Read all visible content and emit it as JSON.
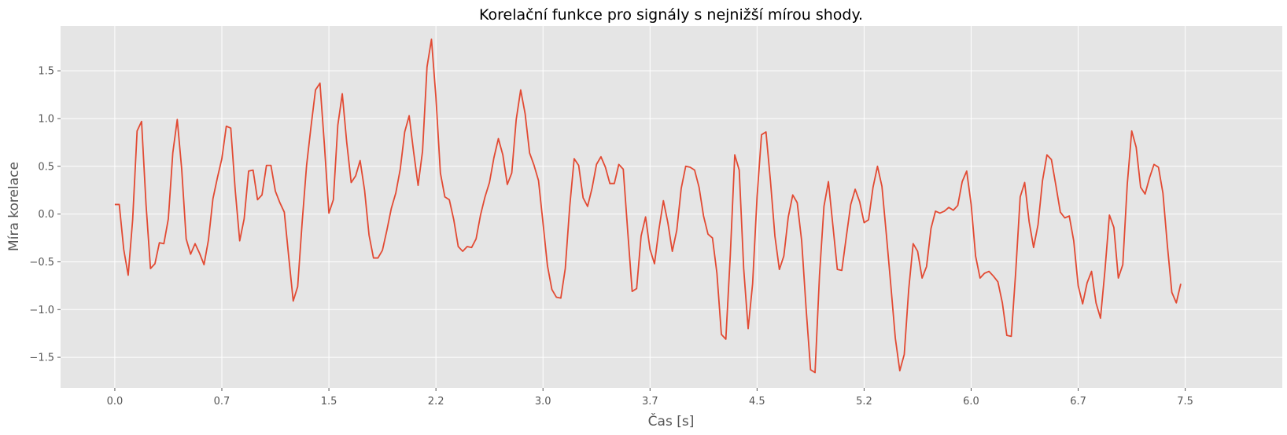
{
  "chart_data": {
    "type": "line",
    "title": "Korelační funkce pro signály s nejnižší mírou shody.",
    "xlabel": "Čas [s]",
    "ylabel": "Míra korelace",
    "xlim": [
      -0.38,
      8.18
    ],
    "ylim": [
      -1.82,
      1.97
    ],
    "xticks": [
      0.0,
      0.75,
      1.5,
      2.25,
      3.0,
      3.75,
      4.5,
      5.25,
      6.0,
      6.75,
      7.5
    ],
    "xtick_labels": [
      "0.0",
      "0.7",
      "1.5",
      "2.2",
      "3.0",
      "3.7",
      "4.5",
      "5.2",
      "6.0",
      "6.7",
      "7.5"
    ],
    "yticks": [
      -1.5,
      -1.0,
      -0.5,
      0.0,
      0.5,
      1.0,
      1.5
    ],
    "ytick_labels": [
      "−1.5",
      "−1.0",
      "−0.5",
      "0.0",
      "0.5",
      "1.0",
      "1.5"
    ],
    "grid": true,
    "colors": {
      "line": "#E24A33",
      "background": "#E5E5E5",
      "grid": "#FFFFFF"
    },
    "series": [
      {
        "x_start": 0.0,
        "x_step": 0.03125,
        "values": [
          0.1,
          0.1,
          -0.37,
          -0.64,
          -0.06,
          0.87,
          0.97,
          0.1,
          -0.57,
          -0.52,
          -0.3,
          -0.31,
          -0.05,
          0.64,
          0.99,
          0.47,
          -0.26,
          -0.42,
          -0.31,
          -0.41,
          -0.53,
          -0.27,
          0.16,
          0.38,
          0.58,
          0.92,
          0.9,
          0.25,
          -0.28,
          -0.05,
          0.45,
          0.46,
          0.15,
          0.2,
          0.51,
          0.51,
          0.24,
          0.12,
          0.02,
          -0.45,
          -0.91,
          -0.76,
          -0.09,
          0.51,
          0.92,
          1.3,
          1.37,
          0.72,
          0.01,
          0.15,
          0.93,
          1.26,
          0.75,
          0.33,
          0.4,
          0.56,
          0.25,
          -0.22,
          -0.46,
          -0.46,
          -0.38,
          -0.17,
          0.06,
          0.22,
          0.47,
          0.86,
          1.03,
          0.65,
          0.3,
          0.66,
          1.54,
          1.83,
          1.22,
          0.43,
          0.18,
          0.15,
          -0.06,
          -0.34,
          -0.39,
          -0.34,
          -0.35,
          -0.26,
          -0.01,
          0.18,
          0.33,
          0.59,
          0.79,
          0.62,
          0.31,
          0.43,
          0.99,
          1.3,
          1.05,
          0.64,
          0.51,
          0.35,
          -0.09,
          -0.54,
          -0.79,
          -0.87,
          -0.88,
          -0.57,
          0.08,
          0.58,
          0.51,
          0.17,
          0.08,
          0.27,
          0.52,
          0.6,
          0.49,
          0.32,
          0.32,
          0.52,
          0.47,
          -0.18,
          -0.81,
          -0.78,
          -0.23,
          -0.03,
          -0.37,
          -0.52,
          -0.16,
          0.14,
          -0.09,
          -0.39,
          -0.17,
          0.27,
          0.5,
          0.49,
          0.46,
          0.28,
          -0.02,
          -0.21,
          -0.25,
          -0.62,
          -1.26,
          -1.31,
          -0.43,
          0.62,
          0.46,
          -0.57,
          -1.2,
          -0.73,
          0.18,
          0.83,
          0.86,
          0.35,
          -0.23,
          -0.58,
          -0.44,
          -0.03,
          0.2,
          0.12,
          -0.28,
          -0.99,
          -1.63,
          -1.66,
          -0.64,
          0.08,
          0.34,
          -0.12,
          -0.58,
          -0.59,
          -0.24,
          0.1,
          0.26,
          0.13,
          -0.09,
          -0.06,
          0.28,
          0.5,
          0.29,
          -0.22,
          -0.75,
          -1.3,
          -1.64,
          -1.47,
          -0.79,
          -0.31,
          -0.39,
          -0.67,
          -0.55,
          -0.15,
          0.03,
          0.01,
          0.03,
          0.07,
          0.04,
          0.09,
          0.34,
          0.45,
          0.1,
          -0.44,
          -0.67,
          -0.62,
          -0.6,
          -0.65,
          -0.71,
          -0.93,
          -1.27,
          -1.28,
          -0.6,
          0.18,
          0.33,
          -0.08,
          -0.35,
          -0.11,
          0.35,
          0.62,
          0.57,
          0.3,
          0.02,
          -0.04,
          -0.02,
          -0.28,
          -0.75,
          -0.94,
          -0.72,
          -0.6,
          -0.93,
          -1.09,
          -0.59,
          -0.01,
          -0.14,
          -0.67,
          -0.53,
          0.31,
          0.87,
          0.7,
          0.28,
          0.21,
          0.38,
          0.52,
          0.49,
          0.22,
          -0.33,
          -0.82,
          -0.93,
          -0.73
        ]
      }
    ]
  }
}
